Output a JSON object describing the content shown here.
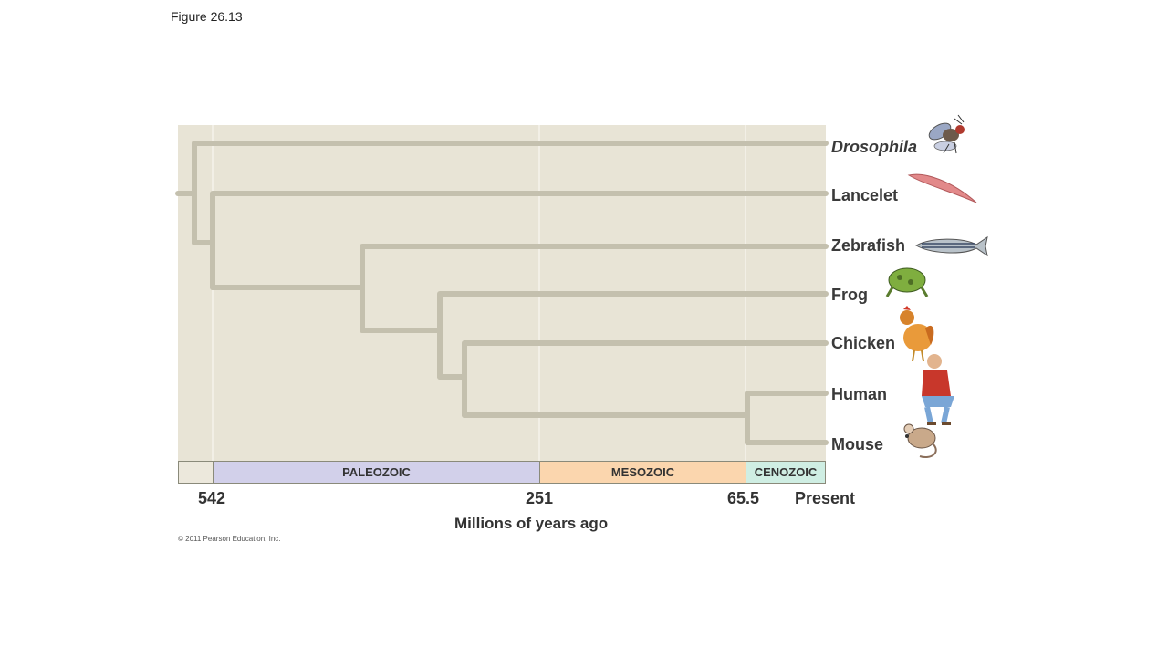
{
  "figure_label": "Figure 26.13",
  "taxa": [
    {
      "key": "drosophila",
      "label": "Drosophila"
    },
    {
      "key": "lancelet",
      "label": "Lancelet"
    },
    {
      "key": "zebrafish",
      "label": "Zebrafish"
    },
    {
      "key": "frog",
      "label": "Frog"
    },
    {
      "key": "chicken",
      "label": "Chicken"
    },
    {
      "key": "human",
      "label": "Human"
    },
    {
      "key": "mouse",
      "label": "Mouse"
    }
  ],
  "eras": {
    "paleozoic": "PALEOZOIC",
    "mesozoic": "MESOZOIC",
    "cenozoic": "CENOZOIC"
  },
  "eras_colors": {
    "paleozoic": "#d2d0ea",
    "mesozoic": "#fbd6ae",
    "cenozoic": "#cfeee3"
  },
  "ticks": {
    "t542": "542",
    "t251": "251",
    "t65": "65.5",
    "present": "Present"
  },
  "axis_title": "Millions of years ago",
  "copyright": "© 2011 Pearson Education, Inc.",
  "colors": {
    "panel_bg": "#e8e4d6",
    "branch": "#c4c0ae"
  }
}
